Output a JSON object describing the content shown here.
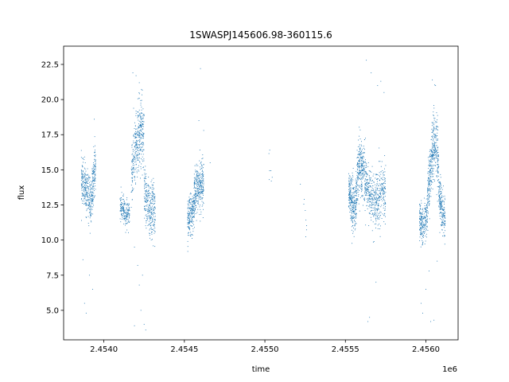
{
  "chart_data": {
    "type": "scatter",
    "title": "1SWASPJ145606.98-360115.6",
    "xlabel": "time",
    "ylabel": "flux",
    "x_offset_label": "1e6",
    "xlim": [
      2.45375,
      2.4562
    ],
    "ylim": [
      2.9,
      23.8
    ],
    "x_scale_factor": 1000000,
    "grid": false,
    "marker_color": "#1f77b4",
    "x_ticks": [
      2.454,
      2.4545,
      2.455,
      2.4555,
      2.456
    ],
    "x_tick_labels": [
      "2.4540",
      "2.4545",
      "2.4550",
      "2.4555",
      "2.4560"
    ],
    "y_ticks": [
      5.0,
      7.5,
      10.0,
      12.5,
      15.0,
      17.5,
      20.0,
      22.5
    ],
    "y_tick_labels": [
      "5.0",
      "7.5",
      "10.0",
      "12.5",
      "15.0",
      "17.5",
      "20.0",
      "22.5"
    ],
    "clusters": [
      {
        "x_range": [
          2.45386,
          2.45395
        ],
        "y_profile": [
          [
            2.45386,
            14.2
          ],
          [
            2.45388,
            13.8
          ],
          [
            2.4539,
            13.3
          ],
          [
            2.45392,
            12.6
          ],
          [
            2.45394,
            14.8
          ],
          [
            2.45395,
            15.6
          ]
        ],
        "spread": 0.8,
        "n": 420
      },
      {
        "x_range": [
          2.4541,
          2.45416
        ],
        "y_profile": [
          [
            2.4541,
            12.3
          ],
          [
            2.45413,
            12.0
          ],
          [
            2.45416,
            11.8
          ]
        ],
        "spread": 0.5,
        "n": 180
      },
      {
        "x_range": [
          2.45417,
          2.45425
        ],
        "y_profile": [
          [
            2.45417,
            14.5
          ],
          [
            2.45419,
            16.0
          ],
          [
            2.45421,
            17.0
          ],
          [
            2.45423,
            18.0
          ],
          [
            2.45425,
            17.5
          ]
        ],
        "spread": 1.2,
        "n": 380
      },
      {
        "x_range": [
          2.45425,
          2.45432
        ],
        "y_profile": [
          [
            2.45425,
            13.5
          ],
          [
            2.45427,
            12.5
          ],
          [
            2.45429,
            11.8
          ],
          [
            2.45431,
            12.3
          ],
          [
            2.45432,
            11.5
          ]
        ],
        "spread": 1.0,
        "n": 300
      },
      {
        "x_range": [
          2.45452,
          2.45456
        ],
        "y_profile": [
          [
            2.45452,
            11.5
          ],
          [
            2.45454,
            11.8
          ],
          [
            2.45456,
            12.2
          ]
        ],
        "spread": 0.7,
        "n": 200
      },
      {
        "x_range": [
          2.45456,
          2.45462
        ],
        "y_profile": [
          [
            2.45456,
            13.0
          ],
          [
            2.45458,
            13.8
          ],
          [
            2.4546,
            14.0
          ],
          [
            2.45462,
            13.6
          ]
        ],
        "spread": 0.9,
        "n": 320
      },
      {
        "x_range": [
          2.45552,
          2.45557
        ],
        "y_profile": [
          [
            2.45552,
            13.5
          ],
          [
            2.45554,
            12.5
          ],
          [
            2.45556,
            12.0
          ],
          [
            2.45557,
            13.0
          ]
        ],
        "spread": 0.9,
        "n": 300
      },
      {
        "x_range": [
          2.45557,
          2.45565
        ],
        "y_profile": [
          [
            2.45557,
            14.5
          ],
          [
            2.45559,
            15.5
          ],
          [
            2.45561,
            15.0
          ],
          [
            2.45563,
            14.2
          ],
          [
            2.45565,
            13.5
          ]
        ],
        "spread": 1.0,
        "n": 380
      },
      {
        "x_range": [
          2.45565,
          2.45575
        ],
        "y_profile": [
          [
            2.45565,
            13.2
          ],
          [
            2.45568,
            12.5
          ],
          [
            2.45571,
            13.0
          ],
          [
            2.45573,
            13.8
          ],
          [
            2.45575,
            13.2
          ]
        ],
        "spread": 1.0,
        "n": 360
      },
      {
        "x_range": [
          2.45596,
          2.45601
        ],
        "y_profile": [
          [
            2.45596,
            11.5
          ],
          [
            2.45598,
            11.0
          ],
          [
            2.456,
            11.5
          ],
          [
            2.45601,
            12.0
          ]
        ],
        "spread": 0.7,
        "n": 220
      },
      {
        "x_range": [
          2.45601,
          2.45608
        ],
        "y_profile": [
          [
            2.45601,
            13.0
          ],
          [
            2.45603,
            15.0
          ],
          [
            2.45605,
            17.0
          ],
          [
            2.45607,
            16.5
          ],
          [
            2.45608,
            15.0
          ]
        ],
        "spread": 1.1,
        "n": 400
      },
      {
        "x_range": [
          2.45608,
          2.45612
        ],
        "y_profile": [
          [
            2.45608,
            13.5
          ],
          [
            2.4561,
            12.0
          ],
          [
            2.45612,
            11.5
          ]
        ],
        "spread": 0.8,
        "n": 200
      },
      {
        "x_range": [
          2.45502,
          2.45505
        ],
        "y_profile": [
          [
            2.45502,
            15.5
          ],
          [
            2.45505,
            15.0
          ]
        ],
        "spread": 0.6,
        "n": 5
      },
      {
        "x_range": [
          2.45522,
          2.45526
        ],
        "y_profile": [
          [
            2.45522,
            13.0
          ],
          [
            2.45526,
            11.0
          ]
        ],
        "spread": 0.6,
        "n": 8
      }
    ],
    "outliers": [
      [
        2.45387,
        8.6
      ],
      [
        2.45388,
        5.5
      ],
      [
        2.45389,
        4.8
      ],
      [
        2.45391,
        7.5
      ],
      [
        2.45393,
        6.5
      ],
      [
        2.45394,
        18.6
      ],
      [
        2.45418,
        21.9
      ],
      [
        2.4542,
        21.7
      ],
      [
        2.45422,
        21.2
      ],
      [
        2.45419,
        9.5
      ],
      [
        2.45421,
        8.2
      ],
      [
        2.45419,
        3.9
      ],
      [
        2.45423,
        5.0
      ],
      [
        2.45425,
        4.0
      ],
      [
        2.45426,
        3.6
      ],
      [
        2.45422,
        6.8
      ],
      [
        2.45424,
        7.5
      ],
      [
        2.4546,
        22.2
      ],
      [
        2.45459,
        18.5
      ],
      [
        2.45462,
        17.8
      ],
      [
        2.45466,
        15.5
      ],
      [
        2.45503,
        16.4
      ],
      [
        2.45504,
        14.2
      ],
      [
        2.45563,
        22.8
      ],
      [
        2.45566,
        21.9
      ],
      [
        2.45564,
        4.2
      ],
      [
        2.45565,
        4.5
      ],
      [
        2.45572,
        21.3
      ],
      [
        2.4557,
        21.0
      ],
      [
        2.45569,
        7.0
      ],
      [
        2.45574,
        20.5
      ],
      [
        2.45597,
        5.5
      ],
      [
        2.45598,
        4.8
      ],
      [
        2.456,
        6.5
      ],
      [
        2.45603,
        4.2
      ],
      [
        2.45605,
        4.3
      ],
      [
        2.45602,
        7.8
      ],
      [
        2.45604,
        21.4
      ],
      [
        2.45606,
        21.0
      ],
      [
        2.45607,
        8.5
      ]
    ]
  }
}
